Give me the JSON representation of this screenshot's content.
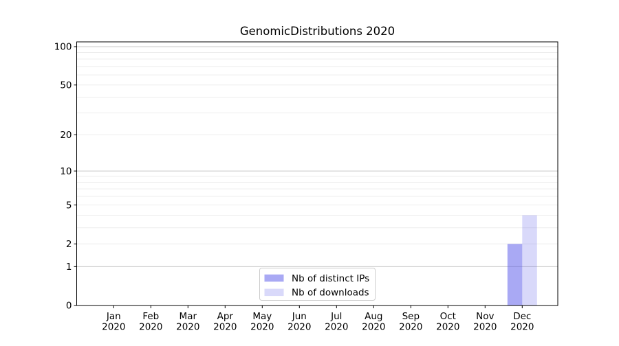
{
  "chart_data": {
    "type": "bar",
    "title": "GenomicDistributions 2020",
    "categories": [
      {
        "month": "Jan",
        "year": "2020"
      },
      {
        "month": "Feb",
        "year": "2020"
      },
      {
        "month": "Mar",
        "year": "2020"
      },
      {
        "month": "Apr",
        "year": "2020"
      },
      {
        "month": "May",
        "year": "2020"
      },
      {
        "month": "Jun",
        "year": "2020"
      },
      {
        "month": "Jul",
        "year": "2020"
      },
      {
        "month": "Aug",
        "year": "2020"
      },
      {
        "month": "Sep",
        "year": "2020"
      },
      {
        "month": "Oct",
        "year": "2020"
      },
      {
        "month": "Nov",
        "year": "2020"
      },
      {
        "month": "Dec",
        "year": "2020"
      }
    ],
    "series": [
      {
        "name": "Nb of distinct IPs",
        "base_color": "#5353e9",
        "fill_opacity": 0.5,
        "rendered_color": "#a9a9f4",
        "values": [
          0,
          0,
          0,
          0,
          0,
          0,
          0,
          0,
          0,
          0,
          0,
          2
        ]
      },
      {
        "name": "Nb of downloads",
        "base_color": "#5353e9",
        "fill_opacity": 0.22,
        "rendered_color": "#d9d9f8",
        "values": [
          0,
          0,
          0,
          0,
          0,
          0,
          0,
          0,
          0,
          0,
          0,
          4
        ]
      }
    ],
    "yscale": "log1p",
    "ylim": [
      0,
      109
    ],
    "yticks": [
      {
        "v": 0,
        "label": "0"
      },
      {
        "v": 1,
        "label": "1"
      },
      {
        "v": 2,
        "label": "2"
      },
      {
        "v": 5,
        "label": "5"
      },
      {
        "v": 10,
        "label": "10"
      },
      {
        "v": 20,
        "label": "20"
      },
      {
        "v": 50,
        "label": "50"
      },
      {
        "v": 100,
        "label": "100"
      }
    ],
    "grid": {
      "decade_values": [
        1,
        10,
        100
      ],
      "minor_values": [
        2,
        3,
        4,
        5,
        6,
        7,
        8,
        9,
        20,
        30,
        40,
        50,
        60,
        70,
        80,
        90
      ],
      "decade_color": "#c9c9c9",
      "minor_color": "#ededed"
    },
    "legend": {
      "position": "lower center"
    },
    "axis_color": "#000000",
    "text_color": "#000000"
  }
}
